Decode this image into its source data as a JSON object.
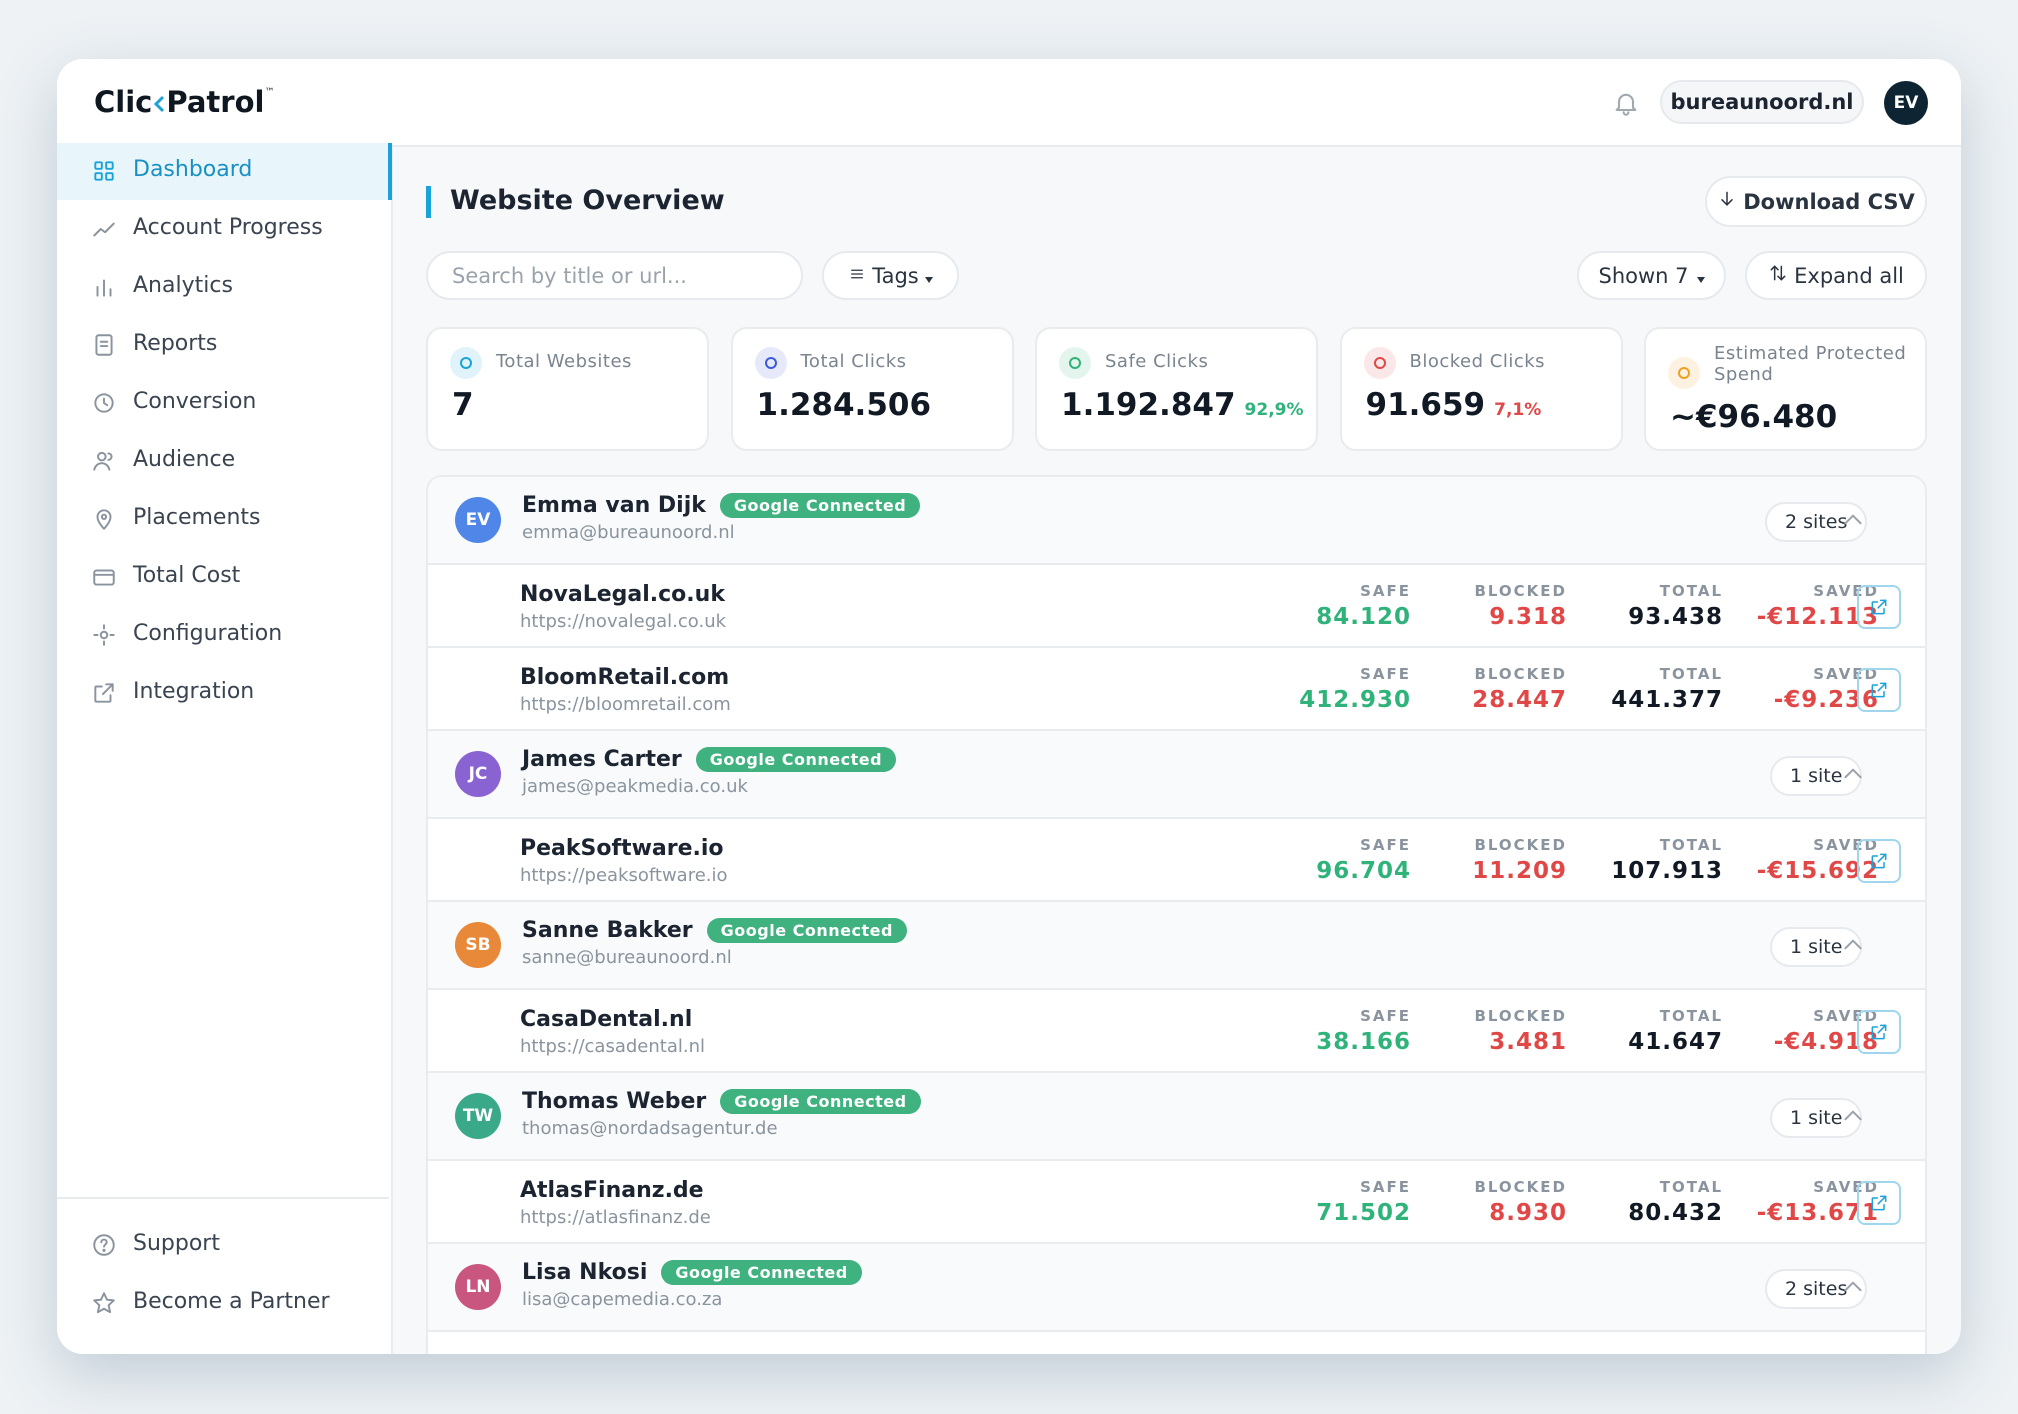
{
  "header": {
    "logo_left": "Clic",
    "logo_right": "Patrol",
    "trademark": "™",
    "account": "bureaunoord.nl",
    "avatar": "EV"
  },
  "sidebar": {
    "nav": [
      "Dashboard",
      "Account Progress",
      "Analytics",
      "Reports",
      "Conversion",
      "Audience",
      "Placements",
      "Total Cost",
      "Configuration",
      "Integration"
    ],
    "footer": [
      "Support",
      "Become a Partner"
    ]
  },
  "page": {
    "title": "Website Overview",
    "download": "Download CSV",
    "search_placeholder": "Search by title or url...",
    "tags": "Tags",
    "shown": "Shown 7",
    "expand": "Expand all"
  },
  "stats": [
    {
      "label": "Total Websites",
      "value": "7",
      "color": "#1aa3d9"
    },
    {
      "label": "Total Clicks",
      "value": "1.284.506",
      "color": "#3b5bdb"
    },
    {
      "label": "Safe Clicks",
      "value": "1.192.847",
      "share": "92,9%",
      "color": "#2fb37a"
    },
    {
      "label": "Blocked Clicks",
      "value": "91.659",
      "share": "7,1%",
      "color": "#e04848"
    },
    {
      "label": "Estimated Protected Spend",
      "value": "~€96.480",
      "color": "#f0a020"
    }
  ],
  "column_labels": {
    "safe": "SAFE",
    "blocked": "BLOCKED",
    "total": "TOTAL",
    "saved": "SAVED"
  },
  "clients": [
    {
      "initials": "EV",
      "name": "Emma van Dijk",
      "badge": "Google Connected",
      "email": "emma@bureaunoord.nl",
      "site_count": "2 sites",
      "color": "#4f86e8",
      "sites": [
        {
          "name": "NovaLegal.co.uk",
          "url": "https://novalegal.co.uk",
          "safe": "84.120",
          "blocked": "9.318",
          "total": "93.438",
          "saved": "-€12.113"
        },
        {
          "name": "BloomRetail.com",
          "url": "https://bloomretail.com",
          "safe": "412.930",
          "blocked": "28.447",
          "total": "441.377",
          "saved": "-€9.236"
        }
      ]
    },
    {
      "initials": "JC",
      "name": "James Carter",
      "badge": "Google Connected",
      "email": "james@peakmedia.co.uk",
      "site_count": "1 site",
      "color": "#8a63d2",
      "sites": [
        {
          "name": "PeakSoftware.io",
          "url": "https://peaksoftware.io",
          "safe": "96.704",
          "blocked": "11.209",
          "total": "107.913",
          "saved": "-€15.692"
        }
      ]
    },
    {
      "initials": "SB",
      "name": "Sanne Bakker",
      "badge": "Google Connected",
      "email": "sanne@bureaunoord.nl",
      "site_count": "1 site",
      "color": "#e8893a",
      "sites": [
        {
          "name": "CasaDental.nl",
          "url": "https://casadental.nl",
          "safe": "38.166",
          "blocked": "3.481",
          "total": "41.647",
          "saved": "-€4.918"
        }
      ]
    },
    {
      "initials": "TW",
      "name": "Thomas Weber",
      "badge": "Google Connected",
      "email": "thomas@nordadsagentur.de",
      "site_count": "1 site",
      "color": "#3aa98a",
      "sites": [
        {
          "name": "AtlasFinanz.de",
          "url": "https://atlasfinanz.de",
          "safe": "71.502",
          "blocked": "8.930",
          "total": "80.432",
          "saved": "-€13.671"
        }
      ]
    },
    {
      "initials": "LN",
      "name": "Lisa Nkosi",
      "badge": "Google Connected",
      "email": "lisa@capemedia.co.za",
      "site_count": "2 sites",
      "color": "#c9567f",
      "sites": []
    }
  ]
}
